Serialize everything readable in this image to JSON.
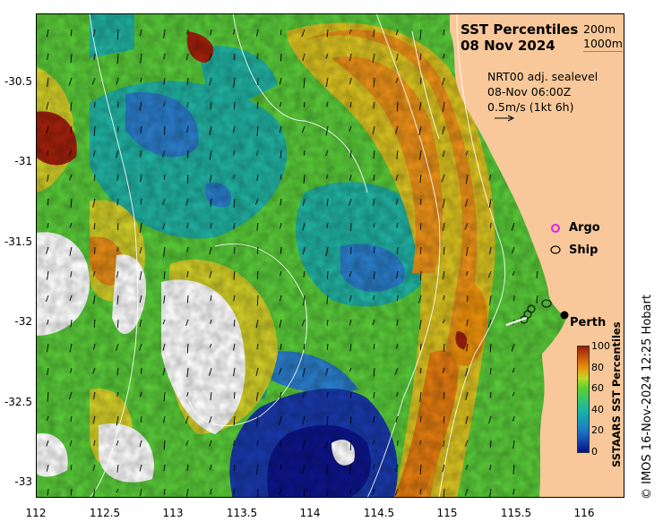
{
  "map": {
    "title_line1": "SST Percentiles",
    "title_line2": "08 Nov 2024",
    "contour_legend_a": "200m",
    "contour_legend_b": "1000m",
    "current_source": "NRT00 adj. sealevel",
    "current_time": "08-Nov 06:00Z",
    "current_scale": "0.5m/s (1kt 6h)",
    "argo_label": "Argo",
    "ship_label": "Ship",
    "city_label": "Perth",
    "colorbar_title": "SSTAARS SST Percentiles",
    "colorbar_ticks": [
      "100",
      "80",
      "60",
      "40",
      "20",
      "0"
    ],
    "credit": "© IMOS 16-Nov-2024 12:25 Hobart",
    "y_ticks": [
      "-30.5",
      "-31",
      "-31.5",
      "-32",
      "-32.5",
      "-33"
    ],
    "x_ticks": [
      "112",
      "112.5",
      "113",
      "113.5",
      "114",
      "114.5",
      "115",
      "115.5",
      "116"
    ],
    "colors": {
      "land": "#f8c89a",
      "p0": "#08108c",
      "p20": "#1a78c8",
      "p40": "#18b8a8",
      "p60": "#58d030",
      "p70": "#c0d828",
      "p80": "#e8900c",
      "p100": "#a01a0c"
    }
  }
}
